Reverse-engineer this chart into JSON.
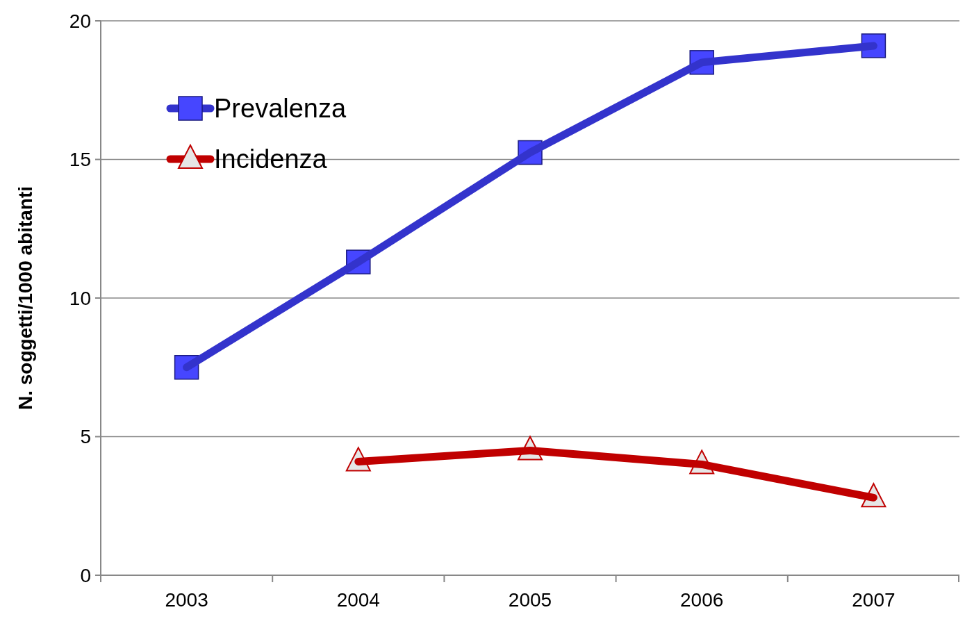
{
  "chart_data": {
    "type": "line",
    "ylabel": "N. soggetti/1000 abitanti",
    "categories": [
      "2003",
      "2004",
      "2005",
      "2006",
      "2007"
    ],
    "series": [
      {
        "name": "Prevalenza",
        "color": "#3333cc",
        "marker": "square",
        "values": [
          7.5,
          11.3,
          15.25,
          18.5,
          19.1
        ]
      },
      {
        "name": "Incidenza",
        "color": "#c00000",
        "marker": "triangle",
        "values": [
          null,
          4.1,
          4.5,
          4.0,
          2.8
        ]
      }
    ],
    "ylim": [
      0,
      20
    ],
    "yticks": [
      0,
      5,
      10,
      15,
      20
    ],
    "grid": "y",
    "legend": "top left"
  }
}
